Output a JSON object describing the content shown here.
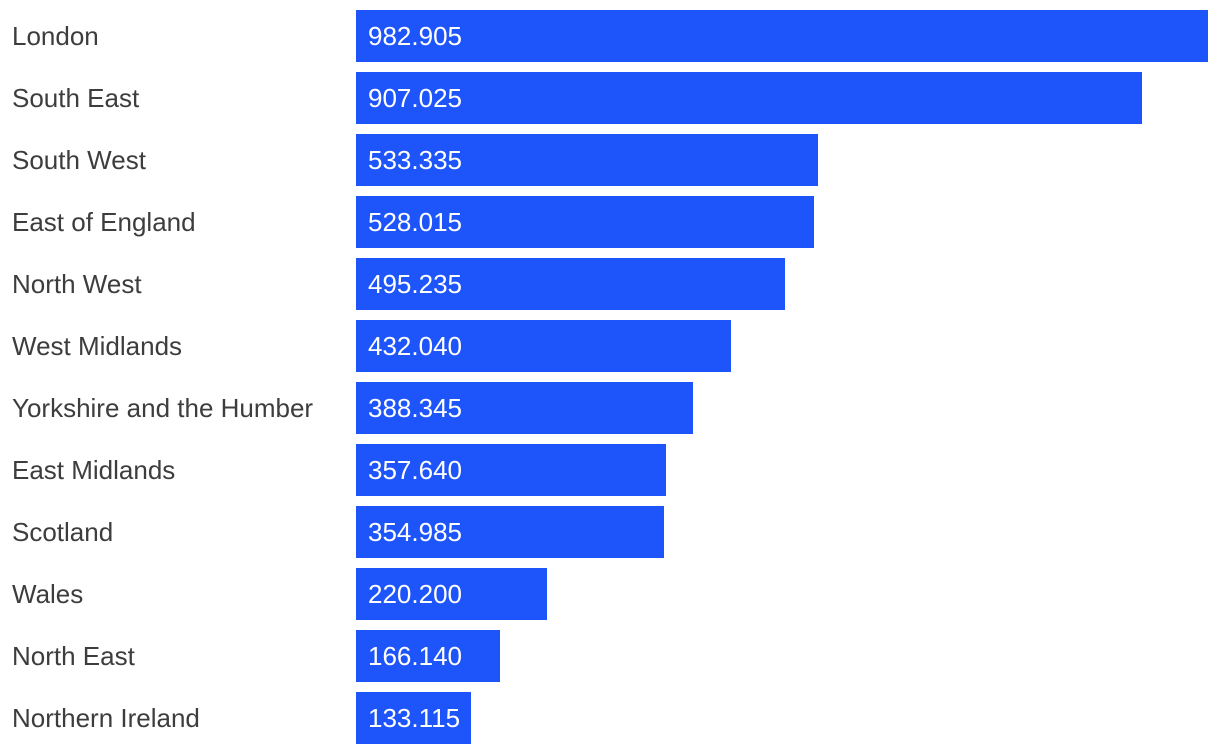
{
  "chart_data": {
    "type": "bar",
    "orientation": "horizontal",
    "title": "",
    "xlabel": "",
    "ylabel": "",
    "grid": false,
    "legend": false,
    "categories": [
      "London",
      "South East",
      "South West",
      "East of England",
      "North West",
      "West Midlands",
      "Yorkshire and the Humber",
      "East Midlands",
      "Scotland",
      "Wales",
      "North East",
      "Northern Ireland"
    ],
    "values": [
      982.905,
      907.025,
      533.335,
      528.015,
      495.235,
      432.04,
      388.345,
      357.64,
      354.985,
      220.2,
      166.14,
      133.115
    ],
    "value_labels": [
      "982.905",
      "907.025",
      "533.335",
      "528.015",
      "495.235",
      "432.040",
      "388.345",
      "357.640",
      "354.985",
      "220.200",
      "166.140",
      "133.115"
    ],
    "xlim": [
      0,
      982.905
    ],
    "colors": {
      "bar": "#1e55fa",
      "category_label": "#3d3d3d",
      "value_label": "#ffffff",
      "background": "#ffffff"
    }
  }
}
